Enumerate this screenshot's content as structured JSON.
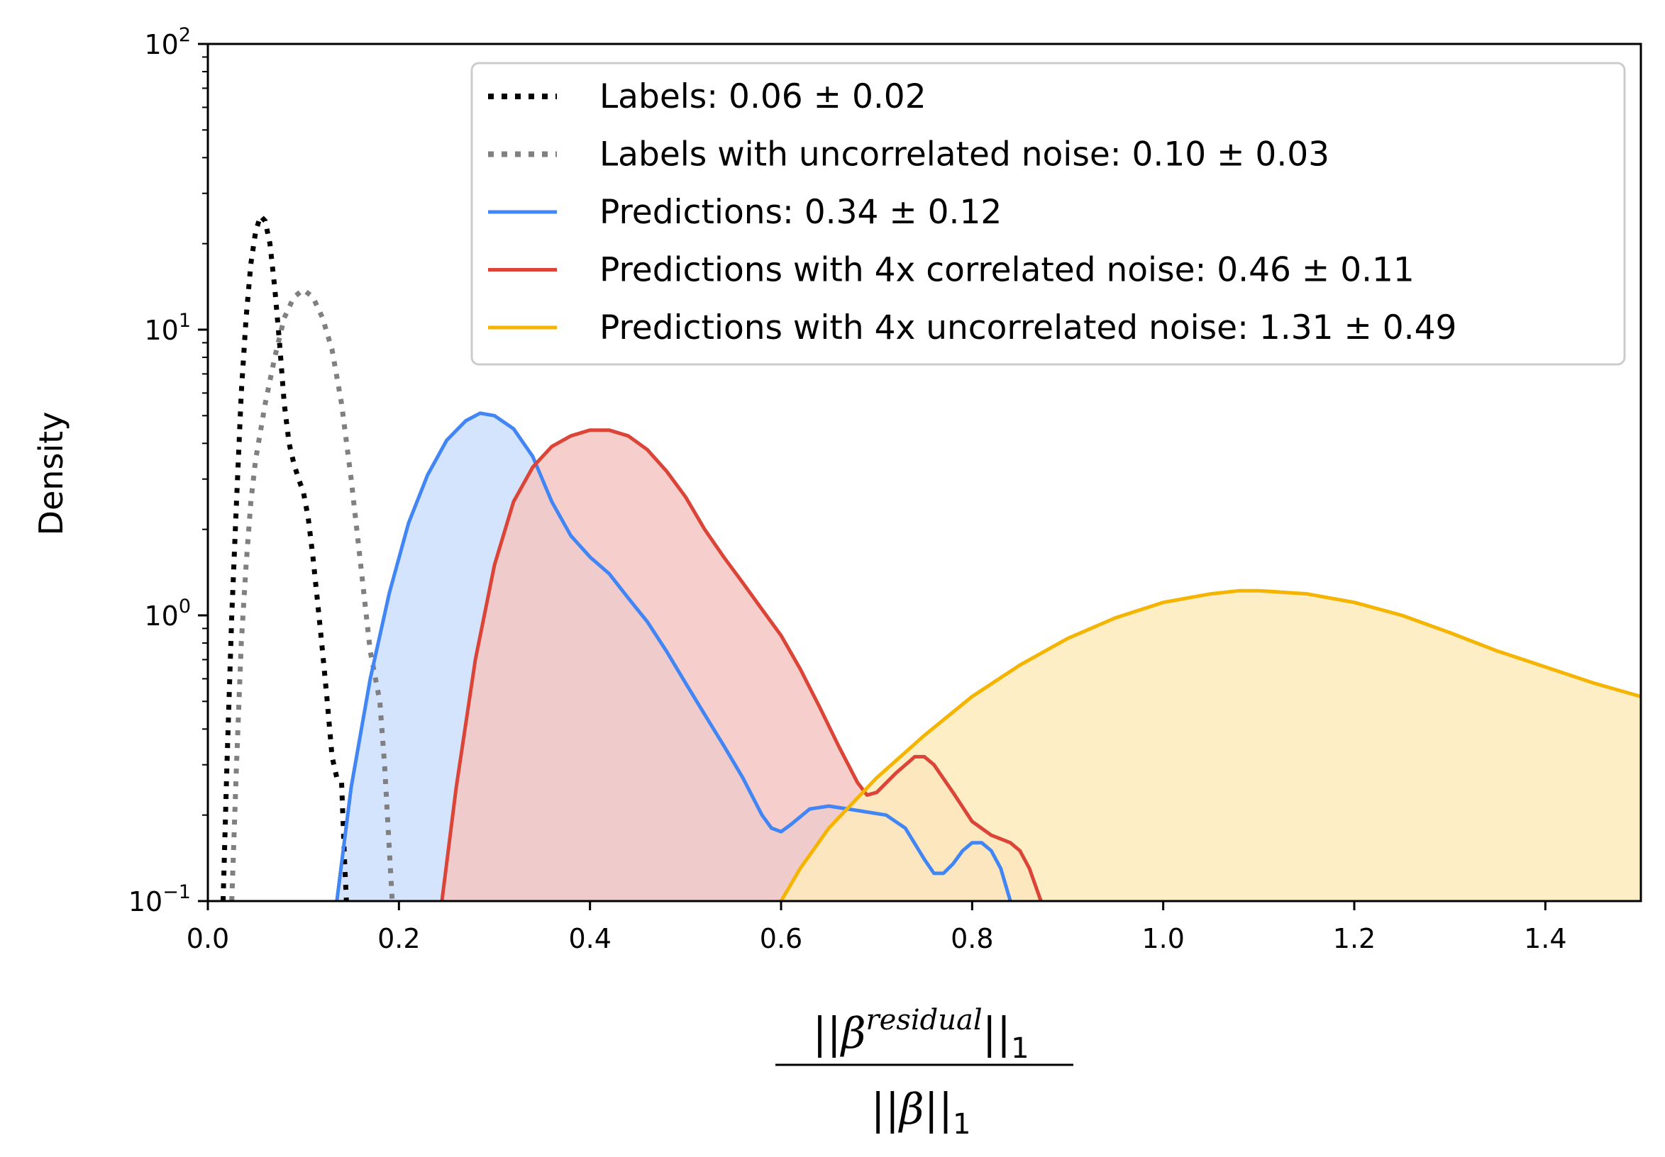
{
  "chart_data": {
    "type": "area",
    "title": "",
    "xlabel": {
      "numerator_prefix": "||β",
      "numerator_superscript": "residual",
      "numerator_suffix": "||",
      "numerator_subscript": "1",
      "denominator": "||β||",
      "denominator_subscript": "1"
    },
    "ylabel": "Density",
    "xlim": [
      0.0,
      1.5
    ],
    "ylim": [
      0.1,
      100
    ],
    "yscale": "log",
    "grid": false,
    "legend_position": "top-right",
    "x_ticks": [
      "0.0",
      "0.2",
      "0.4",
      "0.6",
      "0.8",
      "1.0",
      "1.2",
      "1.4"
    ],
    "y_ticks": [
      {
        "base": "10",
        "exp": "−1",
        "value": 0.1
      },
      {
        "base": "10",
        "exp": "0",
        "value": 1
      },
      {
        "base": "10",
        "exp": "1",
        "value": 10
      },
      {
        "base": "10",
        "exp": "2",
        "value": 100
      }
    ],
    "series": [
      {
        "name": "Labels: 0.06 ± 0.02",
        "color": "#000000",
        "style": "dotted",
        "filled": false,
        "points": [
          [
            0.016,
            0.1
          ],
          [
            0.02,
            0.3
          ],
          [
            0.025,
            1.0
          ],
          [
            0.03,
            2.5
          ],
          [
            0.035,
            6.0
          ],
          [
            0.04,
            11
          ],
          [
            0.045,
            17
          ],
          [
            0.05,
            22
          ],
          [
            0.055,
            25
          ],
          [
            0.06,
            24
          ],
          [
            0.065,
            20
          ],
          [
            0.07,
            14
          ],
          [
            0.075,
            9
          ],
          [
            0.08,
            5.5
          ],
          [
            0.085,
            4.0
          ],
          [
            0.09,
            3.4
          ],
          [
            0.095,
            3.0
          ],
          [
            0.1,
            2.7
          ],
          [
            0.105,
            2.2
          ],
          [
            0.11,
            1.6
          ],
          [
            0.115,
            1.1
          ],
          [
            0.12,
            0.75
          ],
          [
            0.125,
            0.5
          ],
          [
            0.13,
            0.32
          ],
          [
            0.135,
            0.27
          ],
          [
            0.14,
            0.26
          ],
          [
            0.143,
            0.14
          ],
          [
            0.145,
            0.1
          ]
        ]
      },
      {
        "name": "Labels with uncorrelated noise: 0.10 ± 0.03",
        "color": "#808080",
        "style": "dotted",
        "filled": false,
        "points": [
          [
            0.025,
            0.1
          ],
          [
            0.03,
            0.3
          ],
          [
            0.035,
            0.8
          ],
          [
            0.04,
            1.5
          ],
          [
            0.045,
            2.5
          ],
          [
            0.05,
            3.5
          ],
          [
            0.06,
            5.5
          ],
          [
            0.07,
            8.0
          ],
          [
            0.08,
            11
          ],
          [
            0.09,
            13
          ],
          [
            0.1,
            13.8
          ],
          [
            0.11,
            13
          ],
          [
            0.12,
            11
          ],
          [
            0.13,
            8.5
          ],
          [
            0.14,
            5.5
          ],
          [
            0.15,
            3.0
          ],
          [
            0.16,
            1.5
          ],
          [
            0.17,
            0.75
          ],
          [
            0.18,
            0.5
          ],
          [
            0.185,
            0.3
          ],
          [
            0.19,
            0.15
          ],
          [
            0.193,
            0.1
          ]
        ]
      },
      {
        "name": "Predictions: 0.34 ± 0.12",
        "color": "#4285F4",
        "style": "solid",
        "filled": true,
        "fill": "#CDDFFB",
        "points": [
          [
            0.135,
            0.1
          ],
          [
            0.15,
            0.25
          ],
          [
            0.17,
            0.6
          ],
          [
            0.19,
            1.2
          ],
          [
            0.21,
            2.1
          ],
          [
            0.23,
            3.1
          ],
          [
            0.25,
            4.1
          ],
          [
            0.27,
            4.8
          ],
          [
            0.285,
            5.1
          ],
          [
            0.3,
            5.0
          ],
          [
            0.32,
            4.5
          ],
          [
            0.34,
            3.6
          ],
          [
            0.36,
            2.5
          ],
          [
            0.38,
            1.9
          ],
          [
            0.4,
            1.6
          ],
          [
            0.42,
            1.4
          ],
          [
            0.44,
            1.15
          ],
          [
            0.46,
            0.95
          ],
          [
            0.48,
            0.75
          ],
          [
            0.5,
            0.58
          ],
          [
            0.52,
            0.45
          ],
          [
            0.54,
            0.35
          ],
          [
            0.56,
            0.27
          ],
          [
            0.58,
            0.2
          ],
          [
            0.59,
            0.18
          ],
          [
            0.6,
            0.175
          ],
          [
            0.61,
            0.185
          ],
          [
            0.63,
            0.21
          ],
          [
            0.65,
            0.215
          ],
          [
            0.67,
            0.21
          ],
          [
            0.69,
            0.205
          ],
          [
            0.71,
            0.2
          ],
          [
            0.73,
            0.18
          ],
          [
            0.75,
            0.14
          ],
          [
            0.76,
            0.125
          ],
          [
            0.77,
            0.125
          ],
          [
            0.78,
            0.135
          ],
          [
            0.79,
            0.15
          ],
          [
            0.8,
            0.16
          ],
          [
            0.81,
            0.16
          ],
          [
            0.82,
            0.15
          ],
          [
            0.83,
            0.13
          ],
          [
            0.84,
            0.1
          ]
        ]
      },
      {
        "name": "Predictions with 4x correlated noise: 0.46 ± 0.11",
        "color": "#DB4437",
        "style": "solid",
        "filled": true,
        "fill": "#F4C7C3",
        "points": [
          [
            0.245,
            0.1
          ],
          [
            0.26,
            0.25
          ],
          [
            0.28,
            0.7
          ],
          [
            0.3,
            1.5
          ],
          [
            0.32,
            2.5
          ],
          [
            0.34,
            3.3
          ],
          [
            0.36,
            3.9
          ],
          [
            0.38,
            4.25
          ],
          [
            0.4,
            4.45
          ],
          [
            0.42,
            4.45
          ],
          [
            0.44,
            4.25
          ],
          [
            0.46,
            3.8
          ],
          [
            0.48,
            3.2
          ],
          [
            0.5,
            2.6
          ],
          [
            0.52,
            2.0
          ],
          [
            0.54,
            1.6
          ],
          [
            0.56,
            1.3
          ],
          [
            0.58,
            1.05
          ],
          [
            0.6,
            0.85
          ],
          [
            0.62,
            0.65
          ],
          [
            0.64,
            0.48
          ],
          [
            0.66,
            0.35
          ],
          [
            0.68,
            0.26
          ],
          [
            0.69,
            0.235
          ],
          [
            0.7,
            0.24
          ],
          [
            0.72,
            0.28
          ],
          [
            0.74,
            0.32
          ],
          [
            0.75,
            0.32
          ],
          [
            0.76,
            0.3
          ],
          [
            0.78,
            0.24
          ],
          [
            0.8,
            0.19
          ],
          [
            0.82,
            0.17
          ],
          [
            0.84,
            0.16
          ],
          [
            0.85,
            0.15
          ],
          [
            0.86,
            0.13
          ],
          [
            0.872,
            0.1
          ]
        ]
      },
      {
        "name": "Predictions with 4x uncorrelated noise: 1.31 ± 0.49",
        "color": "#F4B400",
        "style": "solid",
        "filled": true,
        "fill": "#FDEBBC",
        "points": [
          [
            0.6,
            0.1
          ],
          [
            0.62,
            0.13
          ],
          [
            0.65,
            0.18
          ],
          [
            0.7,
            0.27
          ],
          [
            0.75,
            0.38
          ],
          [
            0.8,
            0.52
          ],
          [
            0.85,
            0.67
          ],
          [
            0.9,
            0.83
          ],
          [
            0.95,
            0.98
          ],
          [
            1.0,
            1.11
          ],
          [
            1.05,
            1.19
          ],
          [
            1.08,
            1.22
          ],
          [
            1.1,
            1.22
          ],
          [
            1.15,
            1.19
          ],
          [
            1.2,
            1.11
          ],
          [
            1.25,
            1.0
          ],
          [
            1.3,
            0.87
          ],
          [
            1.35,
            0.75
          ],
          [
            1.4,
            0.66
          ],
          [
            1.45,
            0.58
          ],
          [
            1.5,
            0.52
          ]
        ]
      }
    ]
  }
}
